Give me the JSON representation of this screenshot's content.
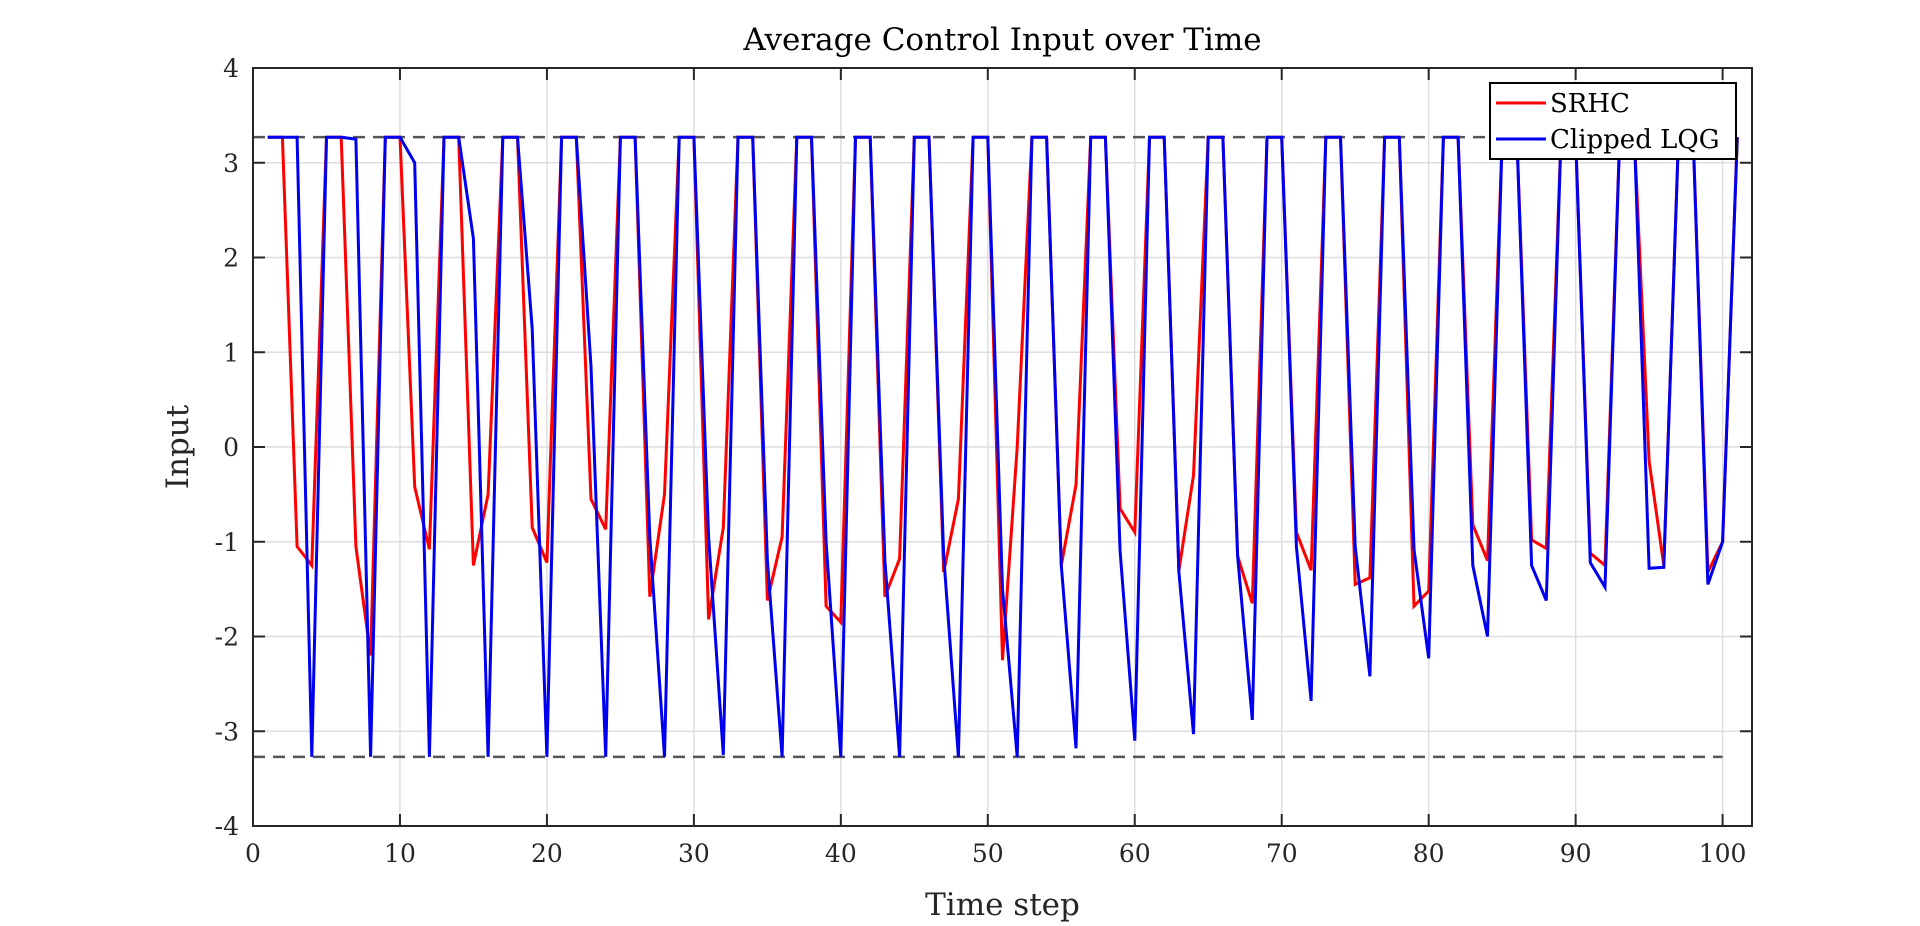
{
  "chart_data": {
    "type": "line",
    "title": "Average Control Input over Time",
    "xlabel": "Time step",
    "ylabel": "Input",
    "xlim": [
      0,
      102
    ],
    "ylim": [
      -4,
      4
    ],
    "xticks": [
      0,
      10,
      20,
      30,
      40,
      50,
      60,
      70,
      80,
      90,
      100
    ],
    "yticks": [
      -4,
      -3,
      -2,
      -1,
      0,
      1,
      2,
      3,
      4
    ],
    "grid": true,
    "legend": "top-right",
    "reference_lines": [
      3.27,
      -3.27
    ],
    "reference_color": "#555555",
    "series": [
      {
        "name": "SRHC",
        "color": "#ff0000",
        "y": [
          3.27,
          3.27,
          -1.05,
          -1.25,
          3.27,
          3.27,
          -1.05,
          -2.2,
          3.27,
          3.27,
          -0.42,
          -1.08,
          3.27,
          3.27,
          -1.25,
          -0.5,
          3.27,
          3.27,
          -0.85,
          -1.22,
          3.27,
          3.27,
          -0.55,
          -0.87,
          3.27,
          3.27,
          -1.58,
          -0.5,
          3.27,
          3.27,
          -1.82,
          -0.85,
          3.27,
          3.27,
          -1.62,
          -0.95,
          3.27,
          3.27,
          -1.68,
          -1.85,
          3.27,
          3.27,
          -1.58,
          -1.18,
          3.27,
          3.27,
          -1.32,
          -0.55,
          3.27,
          3.27,
          -2.25,
          0.0,
          3.27,
          3.27,
          -1.25,
          -0.4,
          3.27,
          3.27,
          -0.65,
          -0.9,
          3.27,
          3.27,
          -1.3,
          -0.3,
          3.27,
          3.27,
          -1.15,
          -1.65,
          3.27,
          3.27,
          -0.9,
          -1.3,
          3.27,
          3.27,
          -1.45,
          -1.38,
          3.27,
          3.27,
          -1.68,
          -1.52,
          3.27,
          3.27,
          -0.82,
          -1.2,
          3.27,
          3.27,
          -0.98,
          -1.07,
          3.27,
          3.27,
          -1.12,
          -1.25,
          3.27,
          3.27,
          -0.15,
          -1.25,
          3.27,
          3.27,
          -1.32,
          -1.0,
          3.27
        ]
      },
      {
        "name": "Clipped LQG",
        "color": "#0000ee",
        "y": [
          3.27,
          3.27,
          3.27,
          -3.27,
          3.27,
          3.27,
          3.25,
          -3.27,
          3.27,
          3.27,
          3.0,
          -3.27,
          3.27,
          3.27,
          2.2,
          -3.27,
          3.27,
          3.27,
          1.25,
          -3.27,
          3.27,
          3.27,
          0.85,
          -3.27,
          3.27,
          3.27,
          -0.95,
          -3.27,
          3.27,
          3.27,
          -0.95,
          -3.25,
          3.27,
          3.27,
          -1.2,
          -3.27,
          3.27,
          3.27,
          -1.0,
          -3.27,
          3.27,
          3.27,
          -1.2,
          -3.27,
          3.27,
          3.27,
          -1.15,
          -3.27,
          3.27,
          3.27,
          -1.5,
          -3.27,
          3.27,
          3.27,
          -1.25,
          -3.18,
          3.27,
          3.27,
          -1.1,
          -3.1,
          3.27,
          3.27,
          -1.32,
          -3.03,
          3.27,
          3.27,
          -1.15,
          -2.88,
          3.27,
          3.27,
          -1.05,
          -2.68,
          3.27,
          3.27,
          -1.05,
          -2.42,
          3.27,
          3.27,
          -1.08,
          -2.23,
          3.27,
          3.27,
          -1.25,
          -2.0,
          3.27,
          3.27,
          -1.25,
          -1.62,
          3.27,
          3.27,
          -1.22,
          -1.48,
          3.27,
          3.27,
          -1.28,
          -1.27,
          3.27,
          3.27,
          -1.45,
          -1.0,
          3.27
        ]
      }
    ]
  }
}
